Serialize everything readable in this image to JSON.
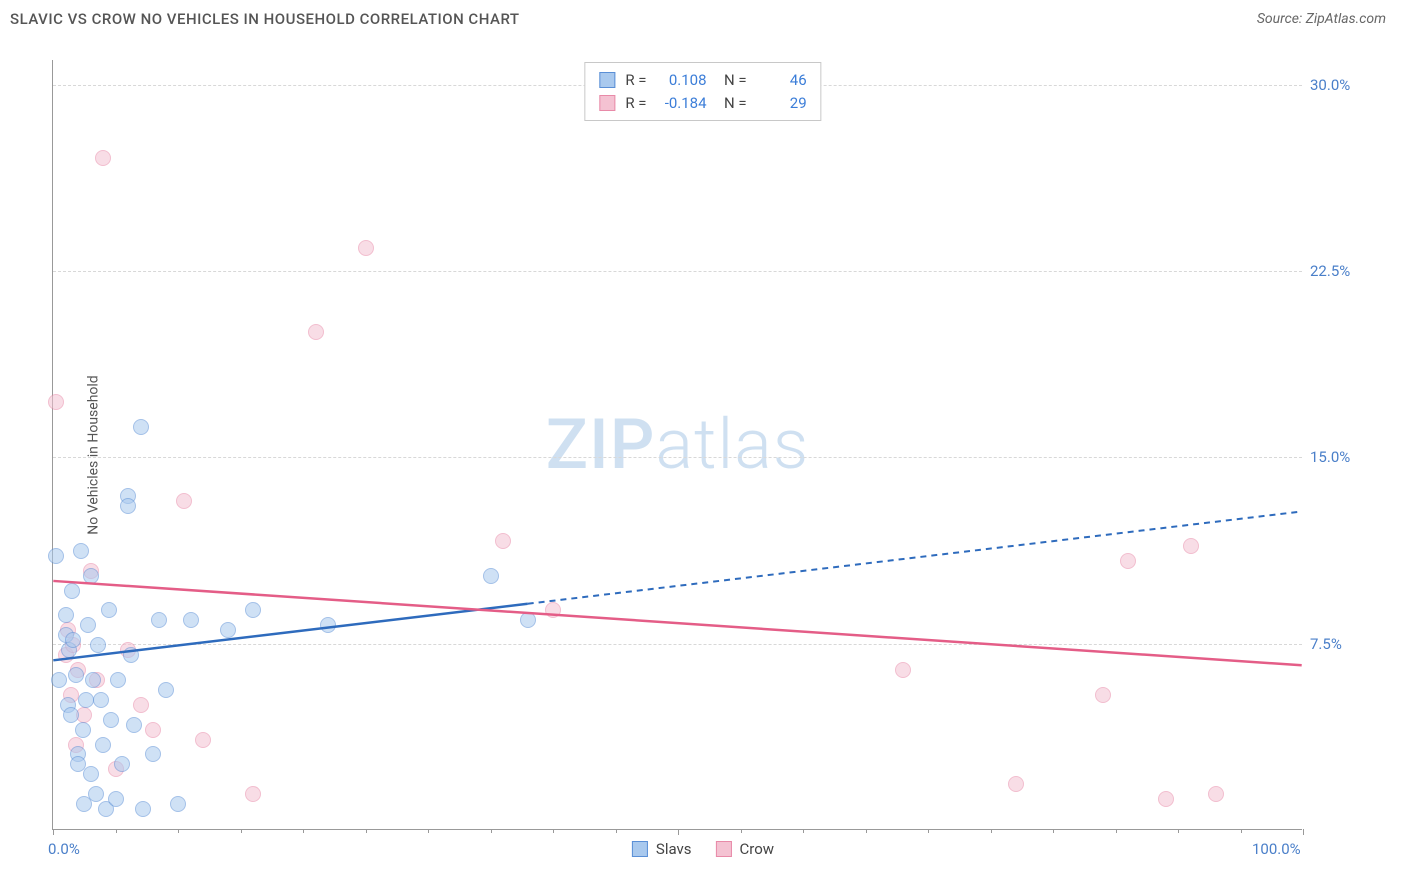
{
  "title": "SLAVIC VS CROW NO VEHICLES IN HOUSEHOLD CORRELATION CHART",
  "source": "Source: ZipAtlas.com",
  "ylabel": "No Vehicles in Household",
  "watermark_a": "ZIP",
  "watermark_b": "atlas",
  "chart": {
    "type": "scatter",
    "background_color": "#ffffff",
    "grid_color": "#d8d8d8",
    "axis_color": "#999999",
    "label_color": "#555555",
    "value_color": "#3b7dd8",
    "xlim": [
      0,
      100
    ],
    "ylim": [
      0,
      31
    ],
    "yticks": [
      7.5,
      15.0,
      22.5,
      30.0
    ],
    "ytick_labels": [
      "7.5%",
      "15.0%",
      "22.5%",
      "30.0%"
    ],
    "xtick_labels": {
      "min": "0.0%",
      "max": "100.0%"
    },
    "xticks_major": [
      0,
      50,
      100
    ],
    "xticks_minor": [
      5,
      10,
      15,
      20,
      25,
      30,
      35,
      40,
      45,
      55,
      60,
      65,
      70,
      75,
      80,
      85,
      90,
      95
    ],
    "marker_radius": 8,
    "marker_opacity": 0.55,
    "series": {
      "slavs": {
        "label": "Slavs",
        "fill": "#a9c9ee",
        "stroke": "#5a8fd6",
        "line_color": "#2e6bbd",
        "R": "0.108",
        "N": "46",
        "trend": {
          "y_at_x0": 6.8,
          "y_at_x100": 12.8,
          "solid_until_x": 38
        },
        "points": [
          [
            0.2,
            11.0
          ],
          [
            0.5,
            6.0
          ],
          [
            1.0,
            7.8
          ],
          [
            1.0,
            8.6
          ],
          [
            1.2,
            5.0
          ],
          [
            1.3,
            7.2
          ],
          [
            1.4,
            4.6
          ],
          [
            1.5,
            9.6
          ],
          [
            1.6,
            7.6
          ],
          [
            1.8,
            6.2
          ],
          [
            2.0,
            3.0
          ],
          [
            2.0,
            2.6
          ],
          [
            2.2,
            11.2
          ],
          [
            2.4,
            4.0
          ],
          [
            2.5,
            1.0
          ],
          [
            2.6,
            5.2
          ],
          [
            2.8,
            8.2
          ],
          [
            3.0,
            10.2
          ],
          [
            3.0,
            2.2
          ],
          [
            3.2,
            6.0
          ],
          [
            3.4,
            1.4
          ],
          [
            3.6,
            7.4
          ],
          [
            3.8,
            5.2
          ],
          [
            4.0,
            3.4
          ],
          [
            4.2,
            0.8
          ],
          [
            4.5,
            8.8
          ],
          [
            4.6,
            4.4
          ],
          [
            5.0,
            1.2
          ],
          [
            5.2,
            6.0
          ],
          [
            5.5,
            2.6
          ],
          [
            6.0,
            13.4
          ],
          [
            6.0,
            13.0
          ],
          [
            6.2,
            7.0
          ],
          [
            6.5,
            4.2
          ],
          [
            7.0,
            16.2
          ],
          [
            7.2,
            0.8
          ],
          [
            8.0,
            3.0
          ],
          [
            8.5,
            8.4
          ],
          [
            9.0,
            5.6
          ],
          [
            10.0,
            1.0
          ],
          [
            11.0,
            8.4
          ],
          [
            14.0,
            8.0
          ],
          [
            16.0,
            8.8
          ],
          [
            22.0,
            8.2
          ],
          [
            35.0,
            10.2
          ],
          [
            38.0,
            8.4
          ]
        ]
      },
      "crow": {
        "label": "Crow",
        "fill": "#f4c2d2",
        "stroke": "#e88aa8",
        "line_color": "#e45d87",
        "R": "-0.184",
        "N": "29",
        "trend": {
          "y_at_x0": 10.0,
          "y_at_x100": 6.6,
          "solid_until_x": 100
        },
        "points": [
          [
            0.2,
            17.2
          ],
          [
            1.0,
            7.0
          ],
          [
            1.2,
            8.0
          ],
          [
            1.4,
            5.4
          ],
          [
            1.6,
            7.4
          ],
          [
            1.8,
            3.4
          ],
          [
            2.0,
            6.4
          ],
          [
            2.5,
            4.6
          ],
          [
            3.0,
            10.4
          ],
          [
            3.5,
            6.0
          ],
          [
            4.0,
            27.0
          ],
          [
            5.0,
            2.4
          ],
          [
            6.0,
            7.2
          ],
          [
            7.0,
            5.0
          ],
          [
            8.0,
            4.0
          ],
          [
            10.5,
            13.2
          ],
          [
            12.0,
            3.6
          ],
          [
            16.0,
            1.4
          ],
          [
            21.0,
            20.0
          ],
          [
            25.0,
            23.4
          ],
          [
            36.0,
            11.6
          ],
          [
            40.0,
            8.8
          ],
          [
            68.0,
            6.4
          ],
          [
            77.0,
            1.8
          ],
          [
            84.0,
            5.4
          ],
          [
            86.0,
            10.8
          ],
          [
            89.0,
            1.2
          ],
          [
            91.0,
            11.4
          ],
          [
            93.0,
            1.4
          ]
        ]
      }
    }
  },
  "legend_bottom": [
    {
      "key": "slavs"
    },
    {
      "key": "crow"
    }
  ]
}
